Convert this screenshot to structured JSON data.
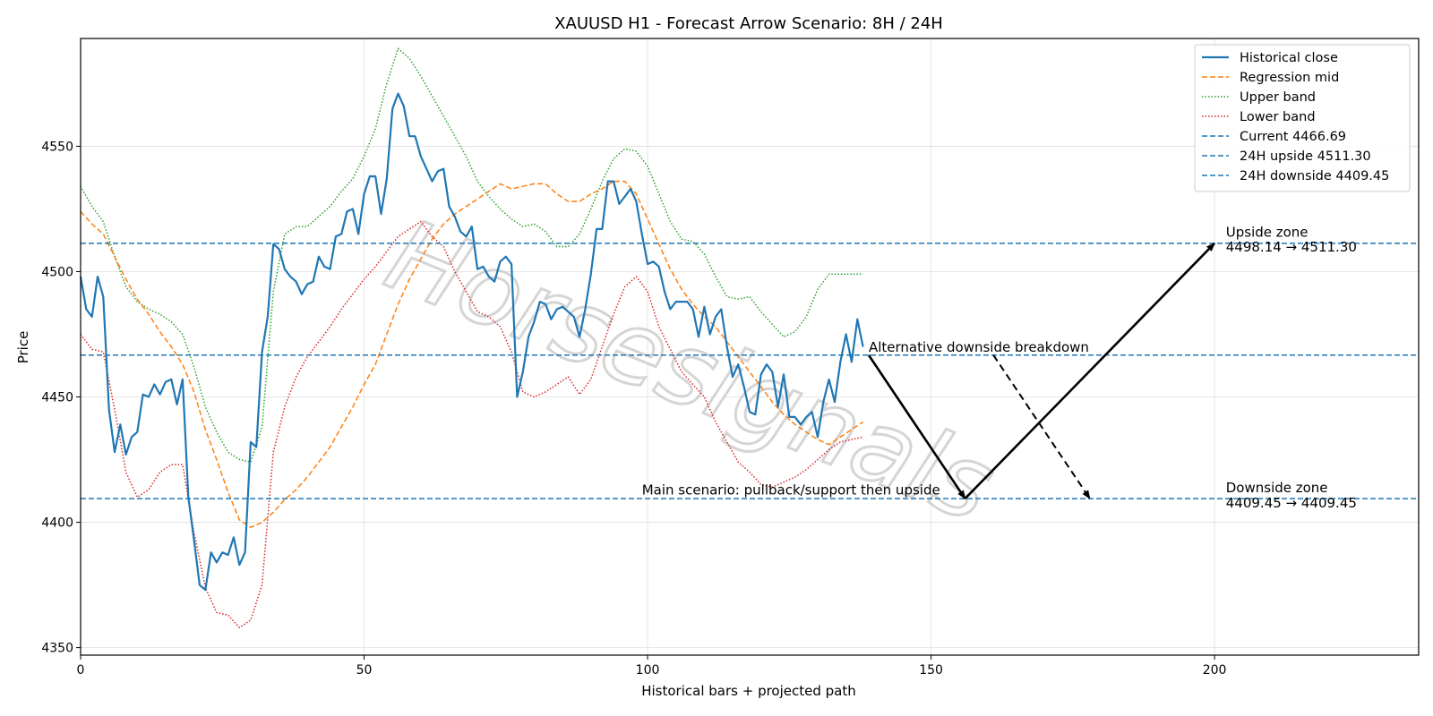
{
  "chart_data": {
    "type": "line",
    "title": "XAUUSD H1 - Forecast Arrow Scenario: 8H / 24H",
    "xlabel": "Historical bars + projected path",
    "ylabel": "Price",
    "xlim": [
      0,
      236
    ],
    "ylim": [
      4347,
      4593
    ],
    "x_ticks": [
      0,
      50,
      100,
      150,
      200
    ],
    "y_ticks": [
      4350,
      4400,
      4450,
      4500,
      4550
    ],
    "grid": true,
    "legend_position": "top-right",
    "watermark": "Horsesignals",
    "series": [
      {
        "name": "Historical close",
        "style": "solid",
        "color": "#1f77b4",
        "x": [
          0,
          1,
          2,
          3,
          4,
          5,
          6,
          7,
          8,
          9,
          10,
          11,
          12,
          13,
          14,
          15,
          16,
          17,
          18,
          19,
          20,
          21,
          22,
          23,
          24,
          25,
          26,
          27,
          28,
          29,
          30,
          31,
          32,
          33,
          34,
          35,
          36,
          37,
          38,
          39,
          40,
          41,
          42,
          43,
          44,
          45,
          46,
          47,
          48,
          49,
          50,
          51,
          52,
          53,
          54,
          55,
          56,
          57,
          58,
          59,
          60,
          61,
          62,
          63,
          64,
          65,
          66,
          67,
          68,
          69,
          70,
          71,
          72,
          73,
          74,
          75,
          76,
          77,
          78,
          79,
          80,
          81,
          82,
          83,
          84,
          85,
          86,
          87,
          88,
          89,
          90,
          91,
          92,
          93,
          94,
          95,
          96,
          97,
          98,
          99,
          100,
          101,
          102,
          103,
          104,
          105,
          106,
          107,
          108,
          109,
          110,
          111,
          112,
          113,
          114,
          115,
          116,
          117,
          118,
          119,
          120,
          121,
          122,
          123,
          124,
          125,
          126,
          127,
          128,
          129,
          130,
          131,
          132,
          133,
          134,
          135,
          136,
          137,
          138
        ],
        "y": [
          4498,
          4485,
          4482,
          4498,
          4490,
          4445,
          4428,
          4439,
          4427,
          4434,
          4436,
          4451,
          4450,
          4455,
          4451,
          4456,
          4457,
          4447,
          4457,
          4410,
          4393,
          4375,
          4373,
          4388,
          4384,
          4388,
          4387,
          4394,
          4383,
          4388,
          4432,
          4430,
          4468,
          4482,
          4511,
          4509,
          4501,
          4498,
          4496,
          4491,
          4495,
          4496,
          4506,
          4502,
          4501,
          4514,
          4515,
          4524,
          4525,
          4515,
          4531,
          4538,
          4538,
          4523,
          4537,
          4565,
          4571,
          4566,
          4554,
          4554,
          4546,
          4541,
          4536,
          4540,
          4541,
          4526,
          4522,
          4516,
          4514,
          4518,
          4501,
          4502,
          4498,
          4496,
          4504,
          4506,
          4503,
          4450,
          4460,
          4474,
          4480,
          4488,
          4487,
          4481,
          4485,
          4486,
          4484,
          4482,
          4474,
          4485,
          4499,
          4517,
          4517,
          4536,
          4536,
          4527,
          4530,
          4533,
          4528,
          4515,
          4503,
          4504,
          4502,
          4492,
          4485,
          4488,
          4488,
          4488,
          4485,
          4474,
          4486,
          4475,
          4482,
          4485,
          4470,
          4458,
          4463,
          4454,
          4444,
          4443,
          4459,
          4463,
          4460,
          4446,
          4459,
          4442,
          4442,
          4439,
          4442,
          4444,
          4434,
          4448,
          4457,
          4448,
          4464,
          4475,
          4464,
          4481,
          4470
        ]
      },
      {
        "name": "Regression mid",
        "style": "dashed",
        "color": "#ff7f0e",
        "x": [
          0,
          2,
          4,
          6,
          8,
          10,
          12,
          14,
          16,
          18,
          20,
          22,
          24,
          26,
          28,
          30,
          32,
          34,
          36,
          38,
          40,
          42,
          44,
          46,
          48,
          50,
          52,
          54,
          56,
          58,
          60,
          62,
          64,
          66,
          68,
          70,
          72,
          74,
          76,
          78,
          80,
          82,
          84,
          86,
          88,
          90,
          92,
          94,
          96,
          98,
          100,
          102,
          104,
          106,
          108,
          110,
          112,
          114,
          116,
          118,
          120,
          122,
          124,
          126,
          128,
          130,
          132,
          134,
          136,
          138
        ],
        "y": [
          4524,
          4519,
          4515,
          4506,
          4497,
          4489,
          4483,
          4476,
          4470,
          4463,
          4452,
          4437,
          4425,
          4412,
          4401,
          4398,
          4400,
          4404,
          4409,
          4413,
          4418,
          4424,
          4430,
          4438,
          4446,
          4455,
          4463,
          4475,
          4487,
          4497,
          4505,
          4513,
          4519,
          4523,
          4526,
          4529,
          4532,
          4535,
          4533,
          4534,
          4535,
          4535,
          4531,
          4528,
          4528,
          4531,
          4533,
          4536,
          4536,
          4531,
          4521,
          4511,
          4501,
          4493,
          4487,
          4482,
          4478,
          4472,
          4466,
          4460,
          4454,
          4448,
          4443,
          4439,
          4436,
          4433,
          4431,
          4434,
          4437,
          4440
        ]
      },
      {
        "name": "Upper band",
        "style": "dotted",
        "color": "#2ca02c",
        "x": [
          0,
          2,
          4,
          6,
          8,
          10,
          12,
          14,
          16,
          18,
          20,
          22,
          24,
          26,
          28,
          30,
          32,
          34,
          36,
          38,
          40,
          42,
          44,
          46,
          48,
          50,
          52,
          54,
          56,
          58,
          60,
          62,
          64,
          66,
          68,
          70,
          72,
          74,
          76,
          78,
          80,
          82,
          84,
          86,
          88,
          90,
          92,
          94,
          96,
          98,
          100,
          102,
          104,
          106,
          108,
          110,
          112,
          114,
          116,
          118,
          120,
          122,
          124,
          126,
          128,
          130,
          132,
          134,
          136,
          138
        ],
        "y": [
          4534,
          4526,
          4520,
          4506,
          4494,
          4488,
          4485,
          4483,
          4480,
          4475,
          4462,
          4446,
          4436,
          4428,
          4425,
          4424,
          4438,
          4492,
          4515,
          4518,
          4518,
          4522,
          4526,
          4532,
          4537,
          4546,
          4557,
          4575,
          4589,
          4585,
          4578,
          4570,
          4562,
          4554,
          4546,
          4536,
          4530,
          4525,
          4521,
          4518,
          4519,
          4516,
          4510,
          4510,
          4515,
          4525,
          4536,
          4545,
          4549,
          4548,
          4542,
          4531,
          4520,
          4513,
          4512,
          4507,
          4498,
          4490,
          4489,
          4490,
          4484,
          4479,
          4474,
          4476,
          4482,
          4493,
          4499,
          4499,
          4499,
          4499
        ]
      },
      {
        "name": "Lower band",
        "style": "dotted",
        "color": "#d62728",
        "x": [
          0,
          2,
          4,
          6,
          8,
          10,
          12,
          14,
          16,
          18,
          20,
          22,
          24,
          26,
          28,
          30,
          32,
          34,
          36,
          38,
          40,
          42,
          44,
          46,
          48,
          50,
          52,
          54,
          56,
          58,
          60,
          62,
          64,
          66,
          68,
          70,
          72,
          74,
          76,
          78,
          80,
          82,
          84,
          86,
          88,
          90,
          92,
          94,
          96,
          98,
          100,
          102,
          104,
          106,
          108,
          110,
          112,
          114,
          116,
          118,
          120,
          122,
          124,
          126,
          128,
          130,
          132,
          134,
          136,
          138
        ],
        "y": [
          4475,
          4469,
          4468,
          4445,
          4420,
          4410,
          4413,
          4420,
          4423,
          4423,
          4396,
          4374,
          4364,
          4363,
          4358,
          4361,
          4375,
          4428,
          4446,
          4458,
          4466,
          4472,
          4478,
          4485,
          4491,
          4497,
          4502,
          4508,
          4514,
          4517,
          4520,
          4514,
          4510,
          4500,
          4492,
          4484,
          4482,
          4478,
          4468,
          4452,
          4450,
          4452,
          4455,
          4458,
          4451,
          4457,
          4470,
          4483,
          4494,
          4498,
          4492,
          4478,
          4469,
          4460,
          4455,
          4450,
          4440,
          4432,
          4424,
          4420,
          4415,
          4414,
          4416,
          4418,
          4421,
          4425,
          4429,
          4432,
          4433,
          4434
        ]
      }
    ],
    "reference_lines": [
      {
        "name": "Current 4466.69",
        "value": 4466.69,
        "style": "dashed",
        "color": "#1f77b4"
      },
      {
        "name": "24H upside 4511.30",
        "value": 4511.3,
        "style": "dashed",
        "color": "#1f77b4"
      },
      {
        "name": "24H downside 4409.45",
        "value": 4409.45,
        "style": "dashed",
        "color": "#1f77b4"
      }
    ],
    "arrows": [
      {
        "from": [
          139,
          4466.69
        ],
        "to": [
          156,
          4409.45
        ],
        "style": "solid",
        "role": "main-leg-1"
      },
      {
        "from": [
          156,
          4409.45
        ],
        "to": [
          200,
          4511.3
        ],
        "style": "solid",
        "role": "main-leg-2"
      },
      {
        "from": [
          161,
          4466.69
        ],
        "to": [
          178,
          4409.45
        ],
        "style": "dashed",
        "role": "alternative"
      }
    ],
    "annotations": [
      {
        "text": "Upside zone",
        "x": 202,
        "y": 4514,
        "role": "upside-zone-title"
      },
      {
        "text": "4498.14 → 4511.30",
        "x": 202,
        "y": 4508,
        "role": "upside-zone-range"
      },
      {
        "text": "Downside zone",
        "x": 202,
        "y": 4412,
        "role": "downside-zone-title"
      },
      {
        "text": "4409.45 → 4409.45",
        "x": 202,
        "y": 4406,
        "role": "downside-zone-range"
      },
      {
        "text": "Alternative downside breakdown",
        "x": 139,
        "y": 4468,
        "role": "alt-scenario-label"
      },
      {
        "text": "Main scenario: pullback/support then upside",
        "x": 99,
        "y": 4411,
        "role": "main-scenario-label"
      }
    ]
  }
}
